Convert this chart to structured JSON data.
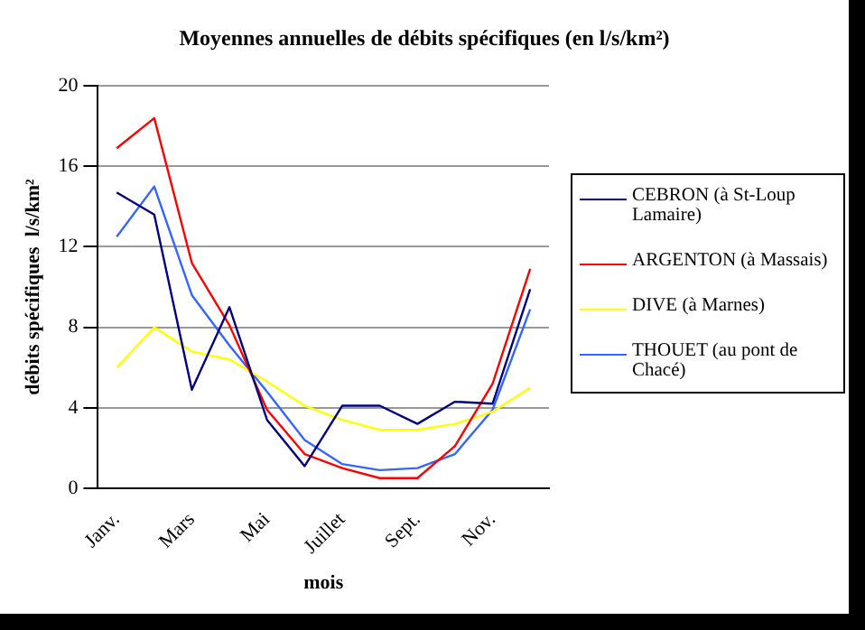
{
  "chart_data": {
    "type": "line",
    "title": "Moyennes annuelles de débits spécifiques (en l/s/km²)",
    "xlabel": "mois",
    "ylabel": "débits spécifiques  l/s/km²",
    "categories": [
      "Janv.",
      null,
      "Mars",
      null,
      "Mai",
      null,
      "Juillet",
      null,
      "Sept.",
      null,
      "Nov.",
      null
    ],
    "series": [
      {
        "name": "CEBRON (à St-Loup Lamaire)",
        "color": "#000080",
        "values": [
          14.7,
          13.6,
          4.9,
          9.0,
          3.4,
          1.1,
          4.1,
          4.1,
          3.2,
          4.3,
          4.2,
          9.9
        ]
      },
      {
        "name": "ARGENTON (à Massais)",
        "color": "#ff0000",
        "values": [
          16.9,
          18.4,
          11.2,
          8.1,
          3.9,
          1.7,
          1.0,
          0.5,
          0.5,
          2.1,
          5.2,
          10.9
        ]
      },
      {
        "name": "DIVE (à Marnes)",
        "color": "#ffff00",
        "values": [
          6.0,
          8.0,
          6.8,
          6.4,
          5.3,
          4.1,
          3.4,
          2.9,
          2.9,
          3.2,
          3.8,
          5.0
        ]
      },
      {
        "name": "THOUET (au pont de Chacé)",
        "color": "#3366ff",
        "values": [
          12.5,
          15.0,
          9.6,
          7.1,
          4.8,
          2.4,
          1.2,
          0.9,
          1.0,
          1.7,
          3.9,
          8.9
        ]
      }
    ],
    "ylim": [
      0,
      20
    ],
    "yticks": [
      0,
      4,
      8,
      12,
      16,
      20
    ],
    "grid": "y",
    "legend": "right",
    "marker": "none",
    "line_style": "solid"
  }
}
